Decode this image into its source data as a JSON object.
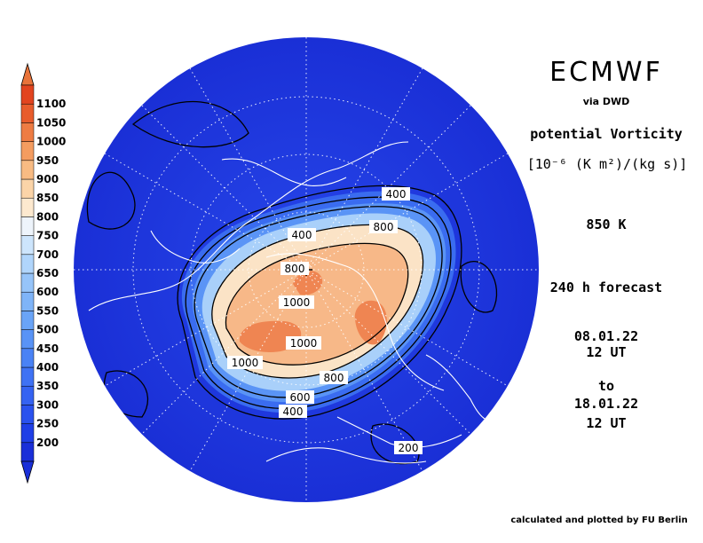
{
  "header": {
    "model": "ECMWF",
    "via": "via DWD",
    "variable": "potential Vorticity",
    "unit": "[10⁻⁶ (K m²)/(kg s)]",
    "level": "850 K",
    "forecast": "240 h forecast",
    "start_date": "08.01.22",
    "start_time": "12 UT",
    "to": "to",
    "end_date": "18.01.22",
    "end_time": "12 UT",
    "credit": "calculated and plotted by FU Berlin"
  },
  "colorbar": {
    "levels": [
      "200",
      "250",
      "300",
      "350",
      "400",
      "450",
      "500",
      "550",
      "600",
      "650",
      "700",
      "750",
      "800",
      "850",
      "900",
      "950",
      "1000",
      "1050",
      "1100"
    ],
    "colors": [
      "#1a2fd8",
      "#1f3fe6",
      "#2a52ee",
      "#3563f2",
      "#3f72f4",
      "#4a82f5",
      "#5993f6",
      "#6aa4f7",
      "#7fb4f8",
      "#96c4f9",
      "#b0d5fb",
      "#cde5fc",
      "#eef4fb",
      "#fde9cf",
      "#fbd4a8",
      "#f8bb83",
      "#f49c60",
      "#ee7c43",
      "#e85c2c",
      "#e2441f"
    ],
    "arrow_top": "#e8733a",
    "arrow_bottom": "#1a2fd8"
  },
  "map": {
    "projection": "north-polar-stereographic",
    "background_color": "#1f34dd",
    "contour_labels": [
      "400",
      "800",
      "400",
      "800",
      "1000",
      "1000",
      "1000",
      "800",
      "600",
      "400",
      "200"
    ]
  }
}
